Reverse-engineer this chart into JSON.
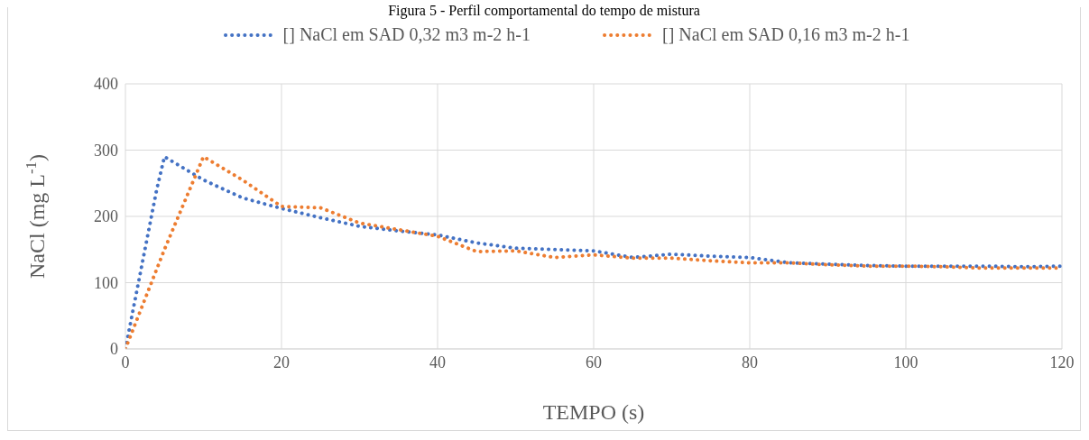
{
  "chart_data": {
    "type": "line",
    "title": "Figura 5 - Perfil comportamental do tempo de mistura",
    "xlabel": "TEMPO (s)",
    "ylabel": "NaCl (mg L$^{-1}$)",
    "x": [
      0,
      1,
      2,
      3,
      4,
      5,
      10,
      15,
      20,
      25,
      30,
      35,
      40,
      45,
      50,
      55,
      60,
      65,
      70,
      75,
      80,
      85,
      90,
      95,
      100,
      105,
      110,
      115,
      120
    ],
    "series": [
      {
        "name": "[] NaCl em SAD 0,32 m3 m-2 h-1",
        "color": "#4472c4",
        "values": [
          0,
          60,
          120,
          180,
          240,
          290,
          255,
          228,
          212,
          198,
          185,
          178,
          172,
          160,
          152,
          150,
          148,
          138,
          143,
          140,
          138,
          130,
          128,
          126,
          125,
          125,
          125,
          124,
          125
        ]
      },
      {
        "name": "[] NaCl em SAD 0,16 m3 m-2 h-1",
        "color": "#ed7d31",
        "values": [
          0,
          30,
          60,
          90,
          120,
          150,
          290,
          255,
          215,
          213,
          190,
          180,
          170,
          147,
          148,
          138,
          142,
          137,
          137,
          133,
          130,
          130,
          127,
          125,
          125,
          124,
          122,
          122,
          122
        ]
      }
    ],
    "xlim": [
      0,
      120
    ],
    "xticks": [
      0,
      20,
      40,
      60,
      80,
      100,
      120
    ],
    "ylim": [
      0,
      400
    ],
    "yticks": [
      0,
      100,
      200,
      300,
      400
    ],
    "grid": true,
    "legend": "top",
    "marker": "none",
    "line_style": "dotted"
  }
}
